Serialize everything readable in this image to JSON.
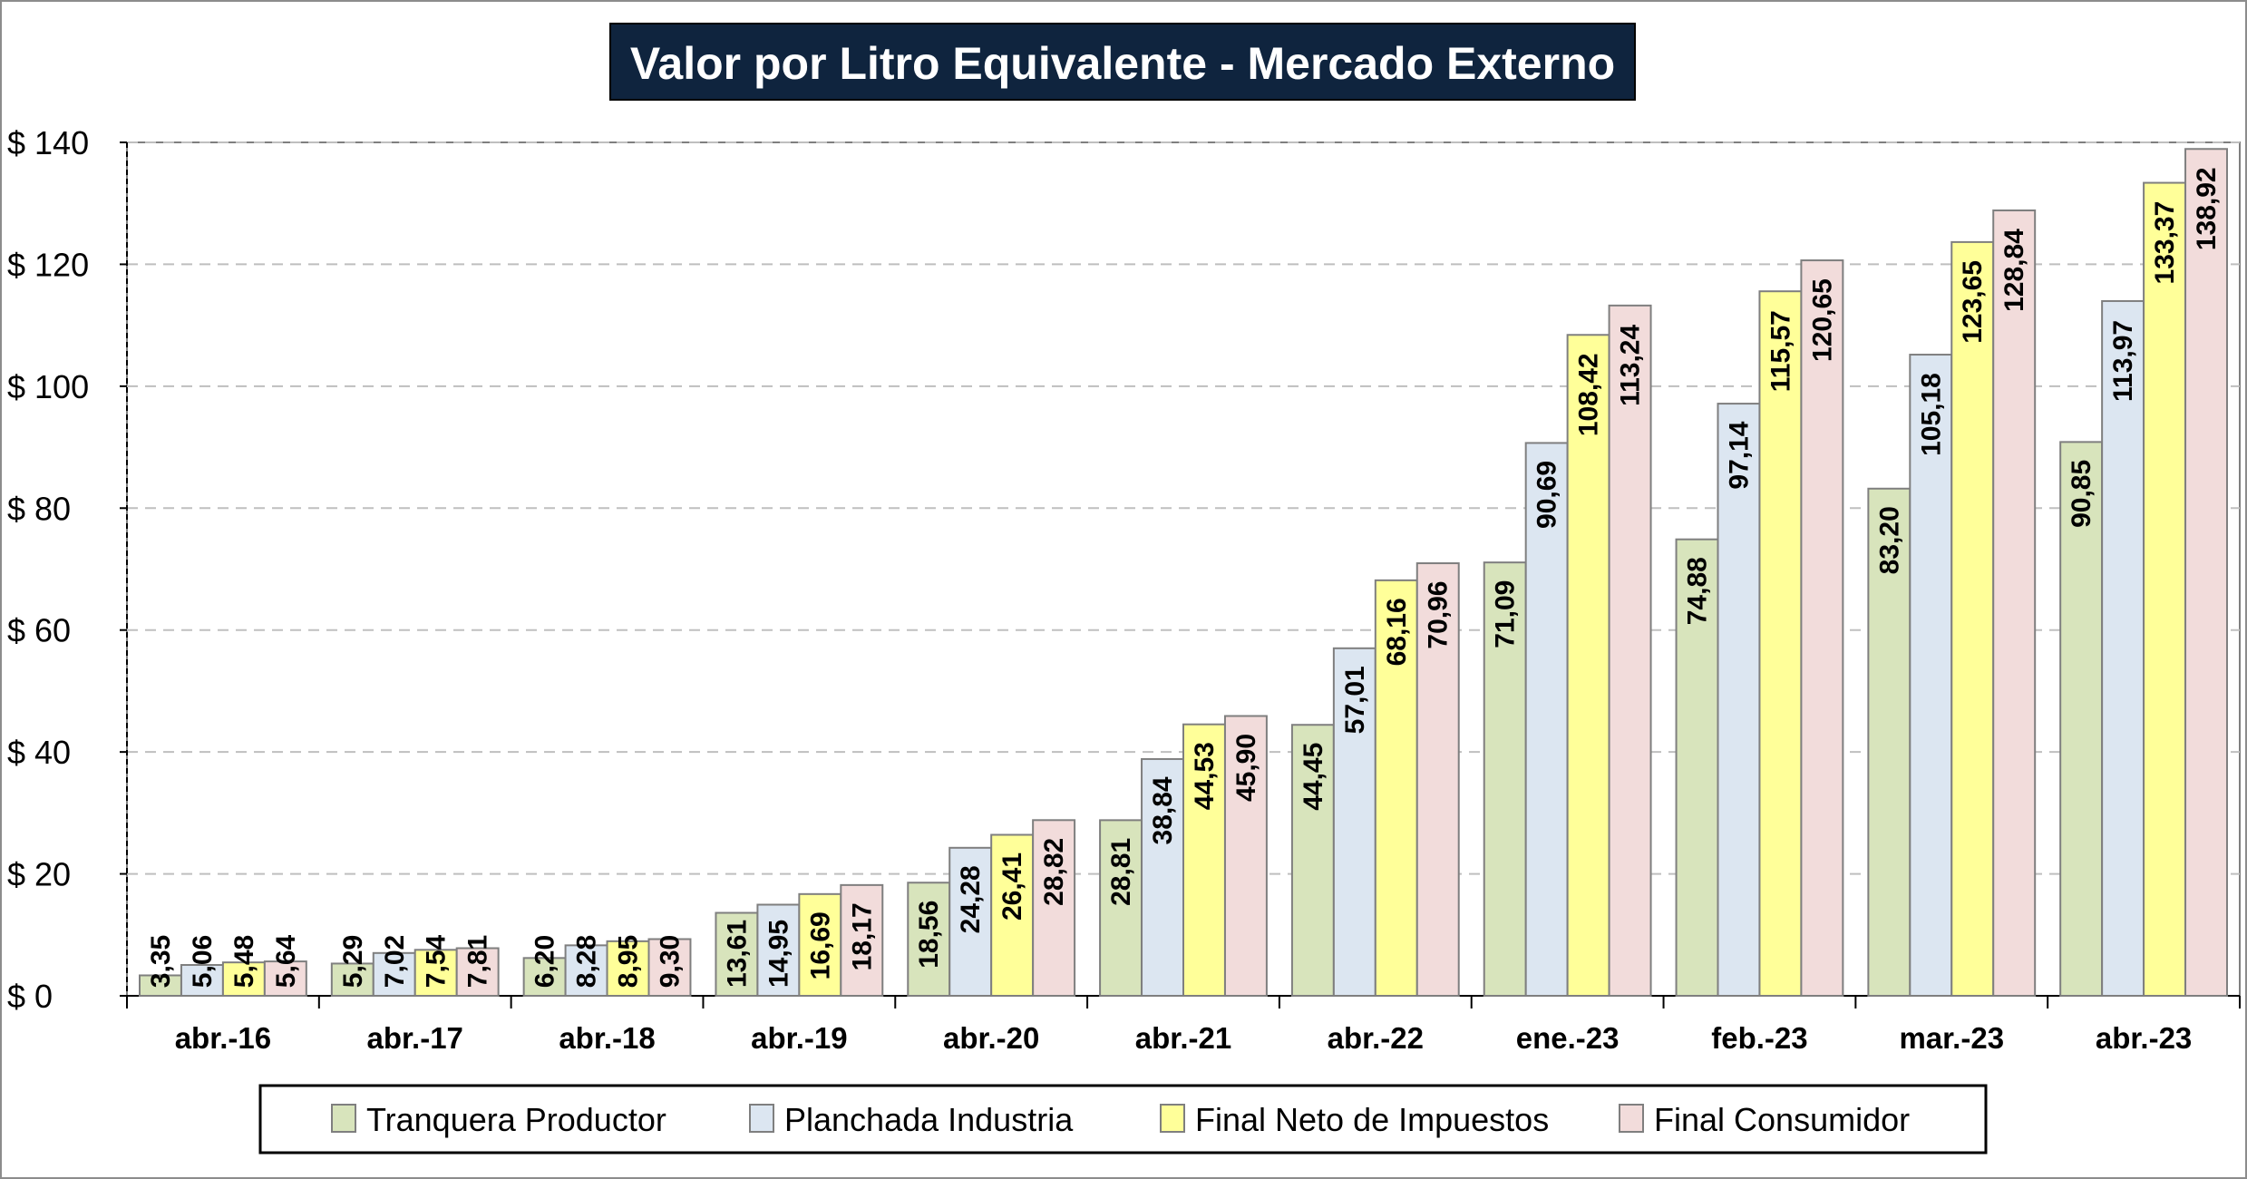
{
  "chart_data": {
    "type": "bar",
    "title": "Valor por Litro Equivalente - Mercado Externo",
    "categories": [
      "abr.-16",
      "abr.-17",
      "abr.-18",
      "abr.-19",
      "abr.-20",
      "abr.-21",
      "abr.-22",
      "ene.-23",
      "feb.-23",
      "mar.-23",
      "abr.-23"
    ],
    "series": [
      {
        "name": "Tranquera Productor",
        "color": "#d8e4bc",
        "values": [
          3.35,
          5.29,
          6.2,
          13.61,
          18.56,
          28.81,
          44.45,
          71.09,
          74.88,
          83.2,
          90.85
        ],
        "labels": [
          "3,35",
          "5,29",
          "6,20",
          "13,61",
          "18,56",
          "28,81",
          "44,45",
          "71,09",
          "74,88",
          "83,20",
          "90,85"
        ]
      },
      {
        "name": "Planchada Industria",
        "color": "#dce6f1",
        "values": [
          5.06,
          7.02,
          8.28,
          14.95,
          24.28,
          38.84,
          57.01,
          90.69,
          97.14,
          105.18,
          113.97
        ],
        "labels": [
          "5,06",
          "7,02",
          "8,28",
          "14,95",
          "24,28",
          "38,84",
          "57,01",
          "90,69",
          "97,14",
          "105,18",
          "113,97"
        ]
      },
      {
        "name": "Final Neto de Impuestos",
        "color": "#ffff99",
        "values": [
          5.48,
          7.54,
          8.95,
          16.69,
          26.41,
          44.53,
          68.16,
          108.42,
          115.57,
          123.65,
          133.37
        ],
        "labels": [
          "5,48",
          "7,54",
          "8,95",
          "16,69",
          "26,41",
          "44,53",
          "68,16",
          "108,42",
          "115,57",
          "123,65",
          "133,37"
        ]
      },
      {
        "name": "Final Consumidor",
        "color": "#f2dcdb",
        "values": [
          5.64,
          7.81,
          9.3,
          18.17,
          28.82,
          45.9,
          70.96,
          113.24,
          120.65,
          128.84,
          138.92
        ],
        "labels": [
          "5,64",
          "7,81",
          "9,30",
          "18,17",
          "28,82",
          "45,90",
          "70,96",
          "113,24",
          "120,65",
          "128,84",
          "138,92"
        ]
      }
    ],
    "yticks": [
      0,
      20,
      40,
      60,
      80,
      100,
      120,
      140
    ],
    "ytick_labels": [
      "$ 0",
      "$ 20",
      "$ 40",
      "$ 60",
      "$ 80",
      "$ 100",
      "$ 120",
      "$ 140"
    ],
    "ylim": [
      0,
      140
    ],
    "grid": "horizontal-dashed",
    "legend_position": "bottom",
    "colors": {
      "title_bg": "#0f243e",
      "title_text": "#ffffff",
      "bar_outline": "#7f7f7f",
      "grid": "#bfbfbf"
    }
  }
}
